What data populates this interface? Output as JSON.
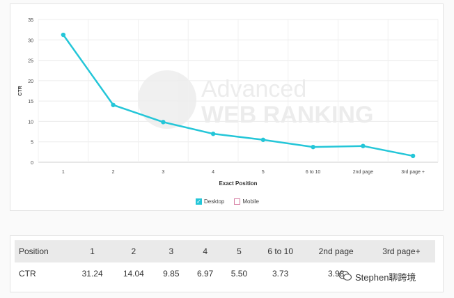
{
  "chart_data": {
    "type": "line",
    "categories": [
      "1",
      "2",
      "3",
      "4",
      "5",
      "6 to 10",
      "2nd page",
      "3rd page +"
    ],
    "series": [
      {
        "name": "Desktop",
        "values": [
          31.24,
          14.04,
          9.85,
          6.97,
          5.5,
          3.73,
          3.98,
          1.55
        ],
        "color": "#24c6d8"
      }
    ],
    "ylabel": "CTR",
    "xlabel": "Exact Position",
    "ylim": [
      0,
      35
    ],
    "yticks": [
      0,
      5,
      10,
      15,
      20,
      25,
      30,
      35
    ],
    "grid": true,
    "legend": [
      "Desktop",
      "Mobile"
    ],
    "legend_colors": [
      "#24c6d8",
      "#d57aa0"
    ],
    "legend_placement": "bottom-center",
    "watermark": "Advanced WEB RANKING"
  },
  "table": {
    "headers": [
      "Position",
      "1",
      "2",
      "3",
      "4",
      "5",
      "6 to 10",
      "2nd page",
      "3rd page+"
    ],
    "row_label": "CTR",
    "row_values": [
      "31.24",
      "14.04",
      "9.85",
      "6.97",
      "5.50",
      "3.73",
      "3.98",
      ""
    ]
  },
  "overlay_text": "Stephen聊跨境"
}
